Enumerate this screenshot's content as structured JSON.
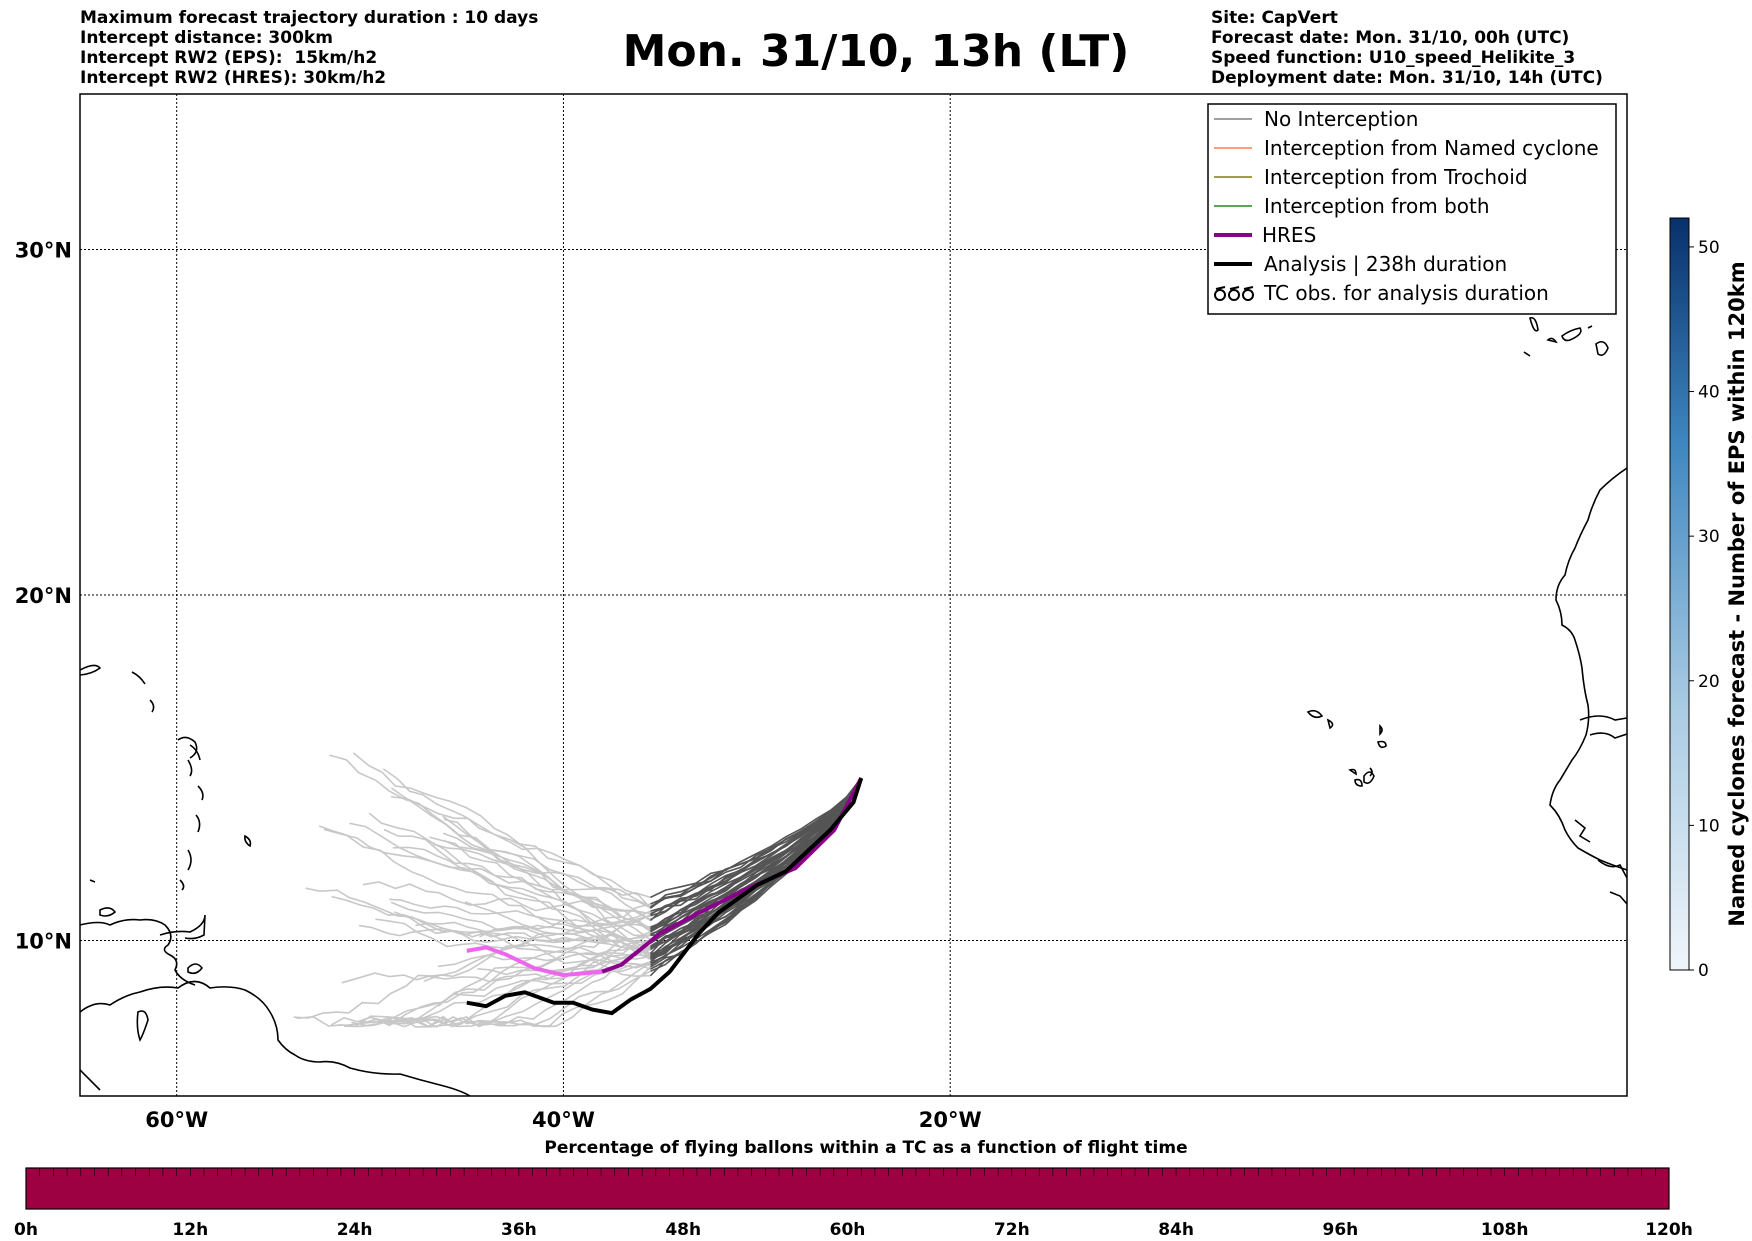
{
  "header_left": [
    "Maximum forecast trajectory duration : 10 days",
    "Intercept distance: 300km",
    "Intercept RW2 (EPS):  15km/h2",
    "Intercept RW2 (HRES): 30km/h2"
  ],
  "title": "Mon. 31/10, 13h (LT)",
  "header_right": [
    "Site: CapVert",
    "Forecast date: Mon. 31/10, 00h (UTC)",
    "Speed function: U10_speed_Helikite_3",
    "Deployment date: Mon. 31/10, 14h (UTC)"
  ],
  "map": {
    "lon_range": [
      -65,
      15
    ],
    "lat_range": [
      5.5,
      34.5
    ],
    "lat_ticks": [
      {
        "value": 30,
        "label": "30°N"
      },
      {
        "value": 20,
        "label": "20°N"
      },
      {
        "value": 10,
        "label": "10°N"
      }
    ],
    "lon_ticks": [
      {
        "value": -60,
        "label": "60°W"
      },
      {
        "value": -40,
        "label": "40°W"
      },
      {
        "value": -20,
        "label": "20°W"
      }
    ],
    "grid": "dotted",
    "colors": {
      "no_interception": "#808080",
      "named_cyclone": "#ff7f50",
      "trochoid": "#808000",
      "both": "#228b22",
      "hres": "#8b008b",
      "hres_faded": "#ee66ee",
      "analysis": "#000000",
      "early_traj": "#555555",
      "late_traj": "#c8c8c8"
    },
    "hres_track": [
      [
        -24.6,
        14.7
      ],
      [
        -26,
        13.2
      ],
      [
        -28,
        12.1
      ],
      [
        -30.5,
        11.5
      ],
      [
        -33,
        10.8
      ],
      [
        -35,
        10.2
      ],
      [
        -37,
        9.3
      ],
      [
        -38,
        9.1
      ],
      [
        -40,
        9.0
      ],
      [
        -41.5,
        9.2
      ],
      [
        -43,
        9.6
      ],
      [
        -44,
        9.8
      ],
      [
        -45,
        9.7
      ]
    ],
    "analysis_track": [
      [
        -24.6,
        14.7
      ],
      [
        -25,
        14
      ],
      [
        -26.2,
        13.2
      ],
      [
        -28.5,
        12
      ],
      [
        -30,
        11.6
      ],
      [
        -32,
        10.8
      ],
      [
        -33,
        10.2
      ],
      [
        -34.5,
        9.1
      ],
      [
        -35.5,
        8.6
      ],
      [
        -36.5,
        8.3
      ],
      [
        -37.5,
        7.9
      ],
      [
        -38.5,
        8.0
      ],
      [
        -39.5,
        8.2
      ],
      [
        -40.5,
        8.2
      ],
      [
        -41,
        8.3
      ],
      [
        -42,
        8.5
      ],
      [
        -43,
        8.4
      ],
      [
        -44,
        8.1
      ],
      [
        -45,
        8.2
      ]
    ]
  },
  "legend": {
    "entries": [
      {
        "label": "No Interception",
        "style": "thin",
        "color": "#808080"
      },
      {
        "label": "Interception from Named cyclone",
        "style": "thin",
        "color": "#ff7f50"
      },
      {
        "label": "Interception from Trochoid",
        "style": "thin",
        "color": "#808000"
      },
      {
        "label": "Interception from both",
        "style": "thin",
        "color": "#228b22"
      },
      {
        "label": "HRES",
        "style": "thick",
        "color": "#8b008b"
      },
      {
        "label": "Analysis | 238h duration",
        "style": "thick",
        "color": "#000000"
      },
      {
        "label": "TC obs. for analysis duration",
        "style": "symbol",
        "color": "#000000"
      }
    ]
  },
  "colorbar_right": {
    "label": "Named cyclones forecast - Number of EPS within 120km",
    "range": [
      0,
      52
    ],
    "ticks": [
      "0",
      "10",
      "20",
      "30",
      "40",
      "50"
    ],
    "color_low": "#f0f5fb",
    "color_high": "#08306b"
  },
  "colorbar_bottom": {
    "title": "Percentage of flying ballons within a TC as a function of flight time",
    "ticks": [
      "0h",
      "12h",
      "24h",
      "36h",
      "48h",
      "60h",
      "72h",
      "84h",
      "96h",
      "108h",
      "120h"
    ],
    "fill_color": "#9e0142"
  }
}
